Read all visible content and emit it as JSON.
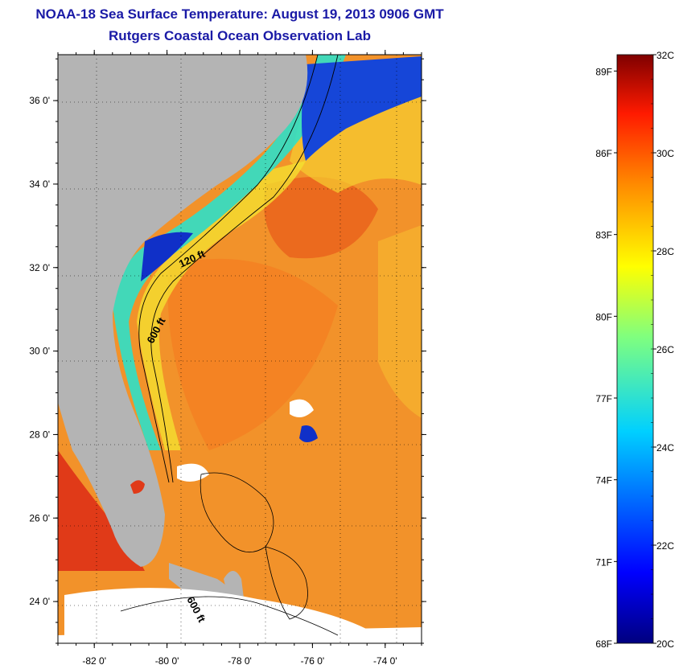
{
  "header": {
    "title": "NOAA-18 Sea Surface Temperature:  August 19, 2013 0906 GMT",
    "subtitle": "Rutgers Coastal Ocean Observation Lab"
  },
  "map": {
    "lat_ticks": [
      {
        "value": 36,
        "label": "36 0'"
      },
      {
        "value": 34,
        "label": "34 0'"
      },
      {
        "value": 32,
        "label": "32 0'"
      },
      {
        "value": 30,
        "label": "30 0'"
      },
      {
        "value": 28,
        "label": "28 0'"
      },
      {
        "value": 26,
        "label": "26 0'"
      },
      {
        "value": 24,
        "label": "24 0'"
      }
    ],
    "lon_ticks": [
      {
        "value": -82,
        "label": "-82 0'"
      },
      {
        "value": -80,
        "label": "-80 0'"
      },
      {
        "value": -78,
        "label": "-78 0'"
      },
      {
        "value": -76,
        "label": "-76 0'"
      },
      {
        "value": -74,
        "label": "-74 0'"
      }
    ],
    "lat_range": [
      23,
      37.1
    ],
    "lon_range": [
      -83,
      -73
    ],
    "contour_labels": {
      "c120": "120 ft",
      "c600a": "600 ft",
      "c600b": "600 ft"
    },
    "colors": {
      "land": "#b4b4b4",
      "ocean_warm": "#f08a20",
      "ocean_hot": "#e03a18",
      "cold_coast": "#1030c8",
      "cloud": "#ffffff"
    }
  },
  "colorbar": {
    "f_labels": [
      "89F",
      "86F",
      "83F",
      "80F",
      "77F",
      "74F",
      "71F",
      "68F"
    ],
    "c_labels": [
      "32C",
      "30C",
      "28C",
      "26C",
      "24C",
      "22C",
      "20C"
    ],
    "range_c": [
      20,
      32
    ]
  }
}
